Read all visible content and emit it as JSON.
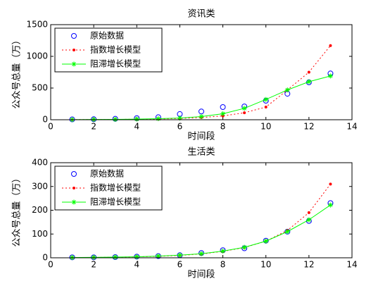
{
  "chart_data": [
    {
      "type": "line",
      "title": "资讯类",
      "xlabel": "时间段",
      "ylabel": "公众号总量（万）",
      "xlim": [
        0,
        14
      ],
      "xticks": [
        0,
        2,
        4,
        6,
        8,
        10,
        12,
        14
      ],
      "ylim": [
        0,
        1500
      ],
      "yticks": [
        0,
        500,
        1000,
        1500
      ],
      "legend": "upper left",
      "x": [
        1,
        2,
        3,
        4,
        5,
        6,
        7,
        8,
        9,
        10,
        11,
        12,
        13
      ],
      "series": [
        {
          "name": "原始数据",
          "color": "#0000ff",
          "marker": "o",
          "linestyle": "none",
          "values": [
            5,
            8,
            15,
            25,
            40,
            90,
            130,
            200,
            210,
            300,
            410,
            590,
            730
          ]
        },
        {
          "name": "指数增长模型",
          "color": "#ff0000",
          "marker": ".",
          "linestyle": "dotted",
          "values": [
            2,
            3,
            5,
            8,
            12,
            20,
            35,
            60,
            110,
            200,
            470,
            750,
            1170
          ]
        },
        {
          "name": "阻滞增长模型",
          "color": "#00ff00",
          "marker": "*",
          "linestyle": "solid",
          "values": [
            2,
            4,
            6,
            10,
            16,
            27,
            50,
            95,
            180,
            320,
            470,
            600,
            690
          ]
        }
      ]
    },
    {
      "type": "line",
      "title": "生活类",
      "xlabel": "时间段",
      "ylabel": "公众号总量（万）",
      "xlim": [
        0,
        14
      ],
      "xticks": [
        0,
        2,
        4,
        6,
        8,
        10,
        12,
        14
      ],
      "ylim": [
        0,
        400
      ],
      "yticks": [
        0,
        100,
        200,
        300,
        400
      ],
      "legend": "upper left",
      "x": [
        1,
        2,
        3,
        4,
        5,
        6,
        7,
        8,
        9,
        10,
        11,
        12,
        13
      ],
      "series": [
        {
          "name": "原始数据",
          "color": "#0000ff",
          "marker": "o",
          "linestyle": "none",
          "values": [
            2,
            2,
            3,
            5,
            7,
            11,
            20,
            32,
            40,
            72,
            110,
            155,
            230
          ]
        },
        {
          "name": "指数增长模型",
          "color": "#ff0000",
          "marker": ".",
          "linestyle": "dotted",
          "values": [
            1,
            1.5,
            2.5,
            4,
            6,
            10,
            16,
            27,
            43,
            70,
            115,
            190,
            310
          ]
        },
        {
          "name": "阻滞增长模型",
          "color": "#00ff00",
          "marker": "*",
          "linestyle": "solid",
          "values": [
            1,
            2,
            3,
            4,
            7,
            11,
            17,
            28,
            44,
            70,
            110,
            160,
            222
          ]
        }
      ]
    }
  ]
}
